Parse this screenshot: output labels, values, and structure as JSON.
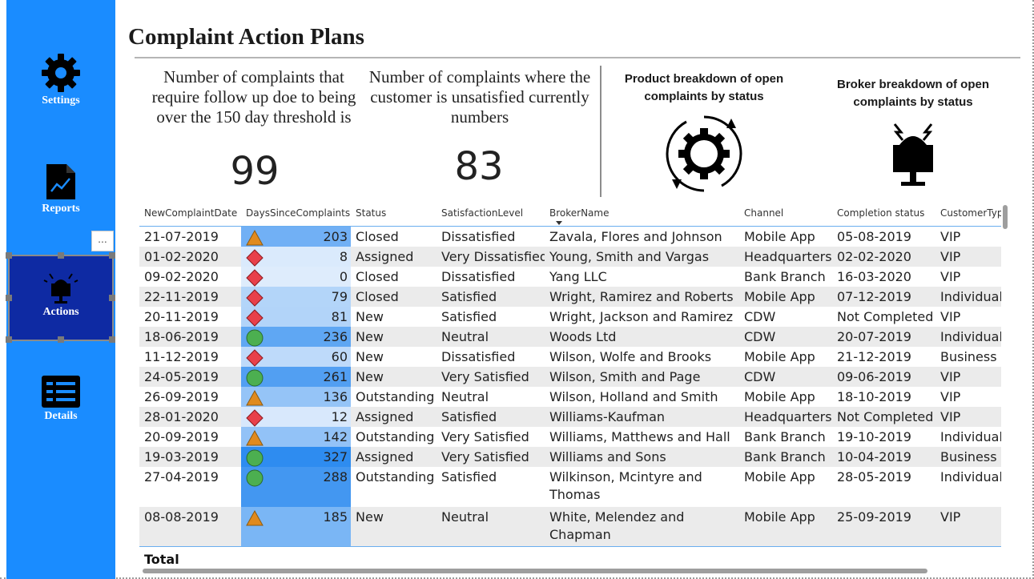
{
  "nav": {
    "settings_label": "Settings",
    "reports_label": "Reports",
    "actions_label": "Actions",
    "details_label": "Details",
    "more_label": "..."
  },
  "page_title": "Complaint Action Plans",
  "kpis": {
    "followup_text": "Number of complaints that require follow up doe to being over the 150 day threshold is",
    "followup_value": "99",
    "unsatisfied_text": "Number of complaints where the customer is unsatisfied currently numbers",
    "unsatisfied_value": "83"
  },
  "cards": {
    "product_title": "Product breakdown of open complaints by status",
    "product_icon": "gear-cycle-icon",
    "broker_title": "Broker breakdown of open complaints by status",
    "broker_icon": "broker-alert-icon"
  },
  "table": {
    "columns": [
      "NewComplaintDate",
      "DaysSinceComplaints",
      "Status",
      "SatisfactionLevel",
      "BrokerName",
      "Channel",
      "Completion status",
      "CustomerType"
    ],
    "sorted_column": "BrokerName",
    "days_max": 327,
    "rows": [
      {
        "date": "21-07-2019",
        "days": "203",
        "kpi": "triangle",
        "status": "Closed",
        "satisfaction": "Dissatisfied",
        "broker": "Zavala, Flores and Johnson",
        "channel": "Mobile App",
        "completion": "05-08-2019",
        "customer": "VIP"
      },
      {
        "date": "01-02-2020",
        "days": "8",
        "kpi": "diamond",
        "status": "Assigned",
        "satisfaction": "Very Dissatisfied",
        "broker": "Young, Smith and Vargas",
        "channel": "Headquarters",
        "completion": "02-02-2020",
        "customer": "VIP"
      },
      {
        "date": "09-02-2020",
        "days": "0",
        "kpi": "diamond",
        "status": "Closed",
        "satisfaction": "Dissatisfied",
        "broker": "Yang LLC",
        "channel": "Bank Branch",
        "completion": "16-03-2020",
        "customer": "VIP"
      },
      {
        "date": "22-11-2019",
        "days": "79",
        "kpi": "diamond",
        "status": "Closed",
        "satisfaction": "Satisfied",
        "broker": "Wright, Ramirez and Roberts",
        "channel": "Mobile App",
        "completion": "07-12-2019",
        "customer": "Individual"
      },
      {
        "date": "20-11-2019",
        "days": "81",
        "kpi": "diamond",
        "status": "New",
        "satisfaction": "Satisfied",
        "broker": "Wright, Jackson and Ramirez",
        "channel": "CDW",
        "completion": "Not Completed",
        "customer": "VIP"
      },
      {
        "date": "18-06-2019",
        "days": "236",
        "kpi": "circle",
        "status": "New",
        "satisfaction": "Neutral",
        "broker": "Woods Ltd",
        "channel": "CDW",
        "completion": "20-07-2019",
        "customer": "Individual"
      },
      {
        "date": "11-12-2019",
        "days": "60",
        "kpi": "diamond",
        "status": "New",
        "satisfaction": "Dissatisfied",
        "broker": "Wilson, Wolfe and Brooks",
        "channel": "Mobile App",
        "completion": "21-12-2019",
        "customer": "Business"
      },
      {
        "date": "24-05-2019",
        "days": "261",
        "kpi": "circle",
        "status": "New",
        "satisfaction": "Very Satisfied",
        "broker": "Wilson, Smith and Page",
        "channel": "CDW",
        "completion": "09-06-2019",
        "customer": "VIP"
      },
      {
        "date": "26-09-2019",
        "days": "136",
        "kpi": "triangle",
        "status": "Outstanding",
        "satisfaction": "Neutral",
        "broker": "Wilson, Holland and Smith",
        "channel": "Mobile App",
        "completion": "18-10-2019",
        "customer": "VIP"
      },
      {
        "date": "28-01-2020",
        "days": "12",
        "kpi": "diamond",
        "status": "Assigned",
        "satisfaction": "Satisfied",
        "broker": "Williams-Kaufman",
        "channel": "Headquarters",
        "completion": "Not Completed",
        "customer": "VIP"
      },
      {
        "date": "20-09-2019",
        "days": "142",
        "kpi": "triangle",
        "status": "Outstanding",
        "satisfaction": "Very Satisfied",
        "broker": "Williams, Matthews and Hall",
        "channel": "Bank Branch",
        "completion": "19-10-2019",
        "customer": "Individual"
      },
      {
        "date": "19-03-2019",
        "days": "327",
        "kpi": "circle",
        "status": "Assigned",
        "satisfaction": "Very Satisfied",
        "broker": "Williams and Sons",
        "channel": "Bank Branch",
        "completion": "10-04-2019",
        "customer": "Business"
      },
      {
        "date": "27-04-2019",
        "days": "288",
        "kpi": "circle",
        "status": "Outstanding",
        "satisfaction": "Satisfied",
        "broker": "Wilkinson, Mcintyre and Thomas",
        "channel": "Mobile App",
        "completion": "28-05-2019",
        "customer": "Individual"
      },
      {
        "date": "08-08-2019",
        "days": "185",
        "kpi": "triangle",
        "status": "New",
        "satisfaction": "Neutral",
        "broker": "White, Melendez and Chapman",
        "channel": "Mobile App",
        "completion": "25-09-2019",
        "customer": "VIP"
      }
    ],
    "total_label": "Total"
  },
  "colors": {
    "sidebar": "#1a8cff",
    "active_nav": "#0e2aa3",
    "kpi_triangle": "#e08a1e",
    "kpi_diamond": "#e8404a",
    "kpi_circle": "#4caf50"
  }
}
